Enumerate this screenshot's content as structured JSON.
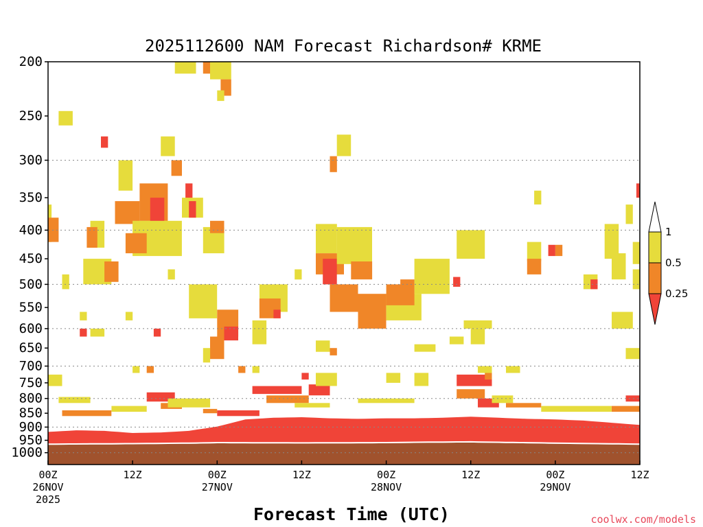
{
  "chart_data": {
    "type": "heatmap",
    "title": "2025112600 NAM Forecast Richardson# KRME",
    "xlabel": "Forecast Time (UTC)",
    "ylabel": "",
    "y_axis": "pressure (hPa), log-scale, inverted",
    "ylim": [
      1050,
      200
    ],
    "yticks": [
      200,
      250,
      300,
      350,
      400,
      450,
      500,
      550,
      600,
      650,
      700,
      750,
      800,
      850,
      900,
      950,
      1000
    ],
    "xlim_hours": [
      0,
      84
    ],
    "xticks": [
      {
        "hour": 0,
        "lines": [
          "00Z",
          "26NOV",
          "2025"
        ]
      },
      {
        "hour": 12,
        "lines": [
          "12Z"
        ]
      },
      {
        "hour": 24,
        "lines": [
          "00Z",
          "27NOV"
        ]
      },
      {
        "hour": 36,
        "lines": [
          "12Z"
        ]
      },
      {
        "hour": 48,
        "lines": [
          "00Z",
          "28NOV"
        ]
      },
      {
        "hour": 60,
        "lines": [
          "12Z"
        ]
      },
      {
        "hour": 72,
        "lines": [
          "00Z",
          "29NOV"
        ]
      },
      {
        "hour": 84,
        "lines": [
          "12Z"
        ]
      }
    ],
    "grid": "dotted horizontal at 300, 400, 500, 600, 700, 800, 900, 1000",
    "legend": {
      "placement": "right",
      "labels": [
        "1",
        "0.5",
        "0.25"
      ],
      "bins": [
        {
          "range": "< 0.25",
          "color": "#f04438"
        },
        {
          "range": "0.25 - 0.5",
          "color": "#f08628"
        },
        {
          "range": "0.5 - 1",
          "color": "#e6dc3c"
        },
        {
          "range": "> 1",
          "color": "#ffffff"
        }
      ]
    },
    "colors": {
      "low": "#f04438",
      "mid": "#f08628",
      "high": "#e6dc3c",
      "ground": "#a0522d"
    },
    "ground": [
      [
        0,
        968
      ],
      [
        12,
        966
      ],
      [
        20,
        964
      ],
      [
        24,
        962
      ],
      [
        36,
        963
      ],
      [
        48,
        962
      ],
      [
        54,
        960
      ],
      [
        60,
        959
      ],
      [
        72,
        964
      ],
      [
        84,
        968
      ]
    ],
    "lower_layer_top": [
      [
        0,
        918
      ],
      [
        4,
        912
      ],
      [
        8,
        914
      ],
      [
        12,
        922
      ],
      [
        16,
        920
      ],
      [
        20,
        914
      ],
      [
        24,
        898
      ],
      [
        28,
        872
      ],
      [
        32,
        866
      ],
      [
        36,
        864
      ],
      [
        40,
        868
      ],
      [
        44,
        870
      ],
      [
        48,
        868
      ],
      [
        52,
        868
      ],
      [
        56,
        866
      ],
      [
        60,
        862
      ],
      [
        64,
        866
      ],
      [
        68,
        870
      ],
      [
        72,
        872
      ],
      [
        76,
        876
      ],
      [
        80,
        884
      ],
      [
        84,
        892
      ]
    ],
    "regions": [
      {
        "c": "high",
        "h": [
          0,
          2
        ],
        "p": [
          725,
          760
        ]
      },
      {
        "c": "high",
        "h": [
          1.5,
          6
        ],
        "p": [
          795,
          815
        ]
      },
      {
        "c": "mid",
        "h": [
          2,
          9
        ],
        "p": [
          840,
          860
        ]
      },
      {
        "c": "high",
        "h": [
          9,
          14
        ],
        "p": [
          825,
          845
        ]
      },
      {
        "c": "low",
        "h": [
          14,
          18
        ],
        "p": [
          780,
          810
        ]
      },
      {
        "c": "mid",
        "h": [
          16,
          19
        ],
        "p": [
          815,
          835
        ]
      },
      {
        "c": "high",
        "h": [
          17,
          23
        ],
        "p": [
          800,
          830
        ]
      },
      {
        "c": "mid",
        "h": [
          22,
          24
        ],
        "p": [
          835,
          850
        ]
      },
      {
        "c": "low",
        "h": [
          24,
          30
        ],
        "p": [
          840,
          860
        ]
      },
      {
        "c": "low",
        "h": [
          29,
          36
        ],
        "p": [
          760,
          785
        ]
      },
      {
        "c": "mid",
        "h": [
          31,
          37
        ],
        "p": [
          790,
          815
        ]
      },
      {
        "c": "high",
        "h": [
          35,
          40
        ],
        "p": [
          815,
          830
        ]
      },
      {
        "c": "low",
        "h": [
          37,
          40
        ],
        "p": [
          755,
          790
        ]
      },
      {
        "c": "high",
        "h": [
          44,
          52
        ],
        "p": [
          800,
          815
        ]
      },
      {
        "c": "low",
        "h": [
          58,
          63
        ],
        "p": [
          725,
          760
        ]
      },
      {
        "c": "mid",
        "h": [
          58,
          62
        ],
        "p": [
          770,
          800
        ]
      },
      {
        "c": "low",
        "h": [
          61,
          64
        ],
        "p": [
          800,
          830
        ]
      },
      {
        "c": "high",
        "h": [
          63,
          66
        ],
        "p": [
          790,
          815
        ]
      },
      {
        "c": "mid",
        "h": [
          65,
          70
        ],
        "p": [
          815,
          830
        ]
      },
      {
        "c": "high",
        "h": [
          70,
          80
        ],
        "p": [
          825,
          845
        ]
      },
      {
        "c": "mid",
        "h": [
          80,
          84
        ],
        "p": [
          825,
          845
        ]
      },
      {
        "c": "low",
        "h": [
          82,
          84
        ],
        "p": [
          790,
          810
        ]
      },
      {
        "c": "high",
        "h": [
          18,
          21
        ],
        "p": [
          200,
          210
        ]
      },
      {
        "c": "mid",
        "h": [
          22,
          23
        ],
        "p": [
          200,
          210
        ]
      },
      {
        "c": "high",
        "h": [
          23,
          26
        ],
        "p": [
          200,
          215
        ]
      },
      {
        "c": "mid",
        "h": [
          24.5,
          26
        ],
        "p": [
          215,
          230
        ]
      },
      {
        "c": "high",
        "h": [
          24,
          25
        ],
        "p": [
          225,
          235
        ]
      },
      {
        "c": "high",
        "h": [
          1.5,
          3.5
        ],
        "p": [
          245,
          260
        ]
      },
      {
        "c": "low",
        "h": [
          7.5,
          8.5
        ],
        "p": [
          272,
          285
        ]
      },
      {
        "c": "high",
        "h": [
          16,
          18
        ],
        "p": [
          272,
          295
        ]
      },
      {
        "c": "mid",
        "h": [
          17.5,
          19
        ],
        "p": [
          300,
          320
        ]
      },
      {
        "c": "high",
        "h": [
          10,
          12
        ],
        "p": [
          300,
          340
        ]
      },
      {
        "c": "mid",
        "h": [
          13,
          17
        ],
        "p": [
          330,
          385
        ]
      },
      {
        "c": "low",
        "h": [
          14.5,
          16.5
        ],
        "p": [
          350,
          390
        ]
      },
      {
        "c": "mid",
        "h": [
          9.5,
          13
        ],
        "p": [
          355,
          390
        ]
      },
      {
        "c": "high",
        "h": [
          12,
          19
        ],
        "p": [
          385,
          445
        ]
      },
      {
        "c": "mid",
        "h": [
          11,
          14
        ],
        "p": [
          405,
          440
        ]
      },
      {
        "c": "high",
        "h": [
          6,
          8
        ],
        "p": [
          385,
          430
        ]
      },
      {
        "c": "mid",
        "h": [
          5.5,
          7
        ],
        "p": [
          395,
          430
        ]
      },
      {
        "c": "high",
        "h": [
          5,
          9
        ],
        "p": [
          450,
          500
        ]
      },
      {
        "c": "mid",
        "h": [
          8,
          10
        ],
        "p": [
          455,
          495
        ]
      },
      {
        "c": "low",
        "h": [
          19.5,
          20.5
        ],
        "p": [
          330,
          360
        ]
      },
      {
        "c": "high",
        "h": [
          19,
          22
        ],
        "p": [
          350,
          380
        ]
      },
      {
        "c": "low",
        "h": [
          20,
          21
        ],
        "p": [
          355,
          380
        ]
      },
      {
        "c": "high",
        "h": [
          22,
          25
        ],
        "p": [
          395,
          440
        ]
      },
      {
        "c": "mid",
        "h": [
          23,
          25
        ],
        "p": [
          385,
          405
        ]
      },
      {
        "c": "high",
        "h": [
          20,
          24
        ],
        "p": [
          500,
          575
        ]
      },
      {
        "c": "mid",
        "h": [
          24,
          27
        ],
        "p": [
          555,
          620
        ]
      },
      {
        "c": "low",
        "h": [
          25,
          27
        ],
        "p": [
          595,
          630
        ]
      },
      {
        "c": "mid",
        "h": [
          23,
          25
        ],
        "p": [
          620,
          680
        ]
      },
      {
        "c": "high",
        "h": [
          22,
          23
        ],
        "p": [
          650,
          690
        ]
      },
      {
        "c": "high",
        "h": [
          30,
          34
        ],
        "p": [
          500,
          560
        ]
      },
      {
        "c": "mid",
        "h": [
          30,
          33
        ],
        "p": [
          530,
          575
        ]
      },
      {
        "c": "low",
        "h": [
          32,
          33
        ],
        "p": [
          555,
          575
        ]
      },
      {
        "c": "high",
        "h": [
          29,
          31
        ],
        "p": [
          580,
          640
        ]
      },
      {
        "c": "high",
        "h": [
          38,
          41
        ],
        "p": [
          390,
          440
        ]
      },
      {
        "c": "mid",
        "h": [
          38,
          42
        ],
        "p": [
          440,
          480
        ]
      },
      {
        "c": "low",
        "h": [
          39,
          41
        ],
        "p": [
          450,
          500
        ]
      },
      {
        "c": "mid",
        "h": [
          40,
          44
        ],
        "p": [
          500,
          560
        ]
      },
      {
        "c": "high",
        "h": [
          41,
          46
        ],
        "p": [
          395,
          460
        ]
      },
      {
        "c": "mid",
        "h": [
          43,
          46
        ],
        "p": [
          455,
          490
        ]
      },
      {
        "c": "mid",
        "h": [
          44,
          48
        ],
        "p": [
          520,
          600
        ]
      },
      {
        "c": "high",
        "h": [
          48,
          53
        ],
        "p": [
          520,
          580
        ]
      },
      {
        "c": "mid",
        "h": [
          48,
          52
        ],
        "p": [
          500,
          545
        ]
      },
      {
        "c": "high",
        "h": [
          52,
          57
        ],
        "p": [
          450,
          520
        ]
      },
      {
        "c": "mid",
        "h": [
          50,
          52
        ],
        "p": [
          490,
          520
        ]
      },
      {
        "c": "high",
        "h": [
          58,
          62
        ],
        "p": [
          400,
          450
        ]
      },
      {
        "c": "high",
        "h": [
          41,
          43
        ],
        "p": [
          270,
          295
        ]
      },
      {
        "c": "mid",
        "h": [
          40,
          41
        ],
        "p": [
          295,
          315
        ]
      },
      {
        "c": "high",
        "h": [
          60,
          62
        ],
        "p": [
          600,
          640
        ]
      },
      {
        "c": "low",
        "h": [
          57.5,
          58.5
        ],
        "p": [
          485,
          505
        ]
      },
      {
        "c": "high",
        "h": [
          61,
          63
        ],
        "p": [
          580,
          600
        ]
      },
      {
        "c": "high",
        "h": [
          38,
          40
        ],
        "p": [
          630,
          660
        ]
      },
      {
        "c": "mid",
        "h": [
          40,
          41
        ],
        "p": [
          650,
          670
        ]
      },
      {
        "c": "high",
        "h": [
          68,
          70
        ],
        "p": [
          420,
          455
        ]
      },
      {
        "c": "mid",
        "h": [
          68,
          70
        ],
        "p": [
          450,
          480
        ]
      },
      {
        "c": "high",
        "h": [
          69,
          70
        ],
        "p": [
          340,
          360
        ]
      },
      {
        "c": "low",
        "h": [
          71,
          72
        ],
        "p": [
          425,
          445
        ]
      },
      {
        "c": "mid",
        "h": [
          72,
          73
        ],
        "p": [
          425,
          445
        ]
      },
      {
        "c": "high",
        "h": [
          76,
          78
        ],
        "p": [
          480,
          510
        ]
      },
      {
        "c": "low",
        "h": [
          77,
          78
        ],
        "p": [
          490,
          510
        ]
      },
      {
        "c": "high",
        "h": [
          79,
          81
        ],
        "p": [
          390,
          450
        ]
      },
      {
        "c": "high",
        "h": [
          80,
          82
        ],
        "p": [
          440,
          490
        ]
      },
      {
        "c": "high",
        "h": [
          82,
          83
        ],
        "p": [
          360,
          390
        ]
      },
      {
        "c": "high",
        "h": [
          80,
          83
        ],
        "p": [
          560,
          600
        ]
      },
      {
        "c": "high",
        "h": [
          83,
          84
        ],
        "p": [
          420,
          460
        ]
      },
      {
        "c": "high",
        "h": [
          83,
          84
        ],
        "p": [
          470,
          510
        ]
      },
      {
        "c": "low",
        "h": [
          83.5,
          84
        ],
        "p": [
          330,
          350
        ]
      },
      {
        "c": "high",
        "h": [
          82,
          84
        ],
        "p": [
          650,
          680
        ]
      },
      {
        "c": "high",
        "h": [
          0,
          0.5
        ],
        "p": [
          360,
          420
        ]
      },
      {
        "c": "mid",
        "h": [
          0,
          1.5
        ],
        "p": [
          380,
          420
        ]
      },
      {
        "c": "high",
        "h": [
          2,
          3
        ],
        "p": [
          480,
          510
        ]
      },
      {
        "c": "low",
        "h": [
          4.5,
          5.5
        ],
        "p": [
          600,
          620
        ]
      },
      {
        "c": "high",
        "h": [
          6,
          8
        ],
        "p": [
          600,
          620
        ]
      },
      {
        "c": "high",
        "h": [
          4.5,
          5.5
        ],
        "p": [
          560,
          580
        ]
      },
      {
        "c": "high",
        "h": [
          11,
          12
        ],
        "p": [
          560,
          580
        ]
      },
      {
        "c": "low",
        "h": [
          15,
          16
        ],
        "p": [
          600,
          620
        ]
      },
      {
        "c": "high",
        "h": [
          17,
          18
        ],
        "p": [
          470,
          490
        ]
      },
      {
        "c": "high",
        "h": [
          35,
          36
        ],
        "p": [
          470,
          490
        ]
      },
      {
        "c": "mid",
        "h": [
          27,
          28
        ],
        "p": [
          700,
          720
        ]
      },
      {
        "c": "high",
        "h": [
          29,
          30
        ],
        "p": [
          700,
          720
        ]
      },
      {
        "c": "mid",
        "h": [
          14,
          15
        ],
        "p": [
          700,
          720
        ]
      },
      {
        "c": "high",
        "h": [
          12,
          13
        ],
        "p": [
          700,
          720
        ]
      },
      {
        "c": "low",
        "h": [
          36,
          37
        ],
        "p": [
          720,
          740
        ]
      },
      {
        "c": "high",
        "h": [
          38,
          41
        ],
        "p": [
          720,
          760
        ]
      },
      {
        "c": "high",
        "h": [
          48,
          50
        ],
        "p": [
          720,
          750
        ]
      },
      {
        "c": "high",
        "h": [
          52,
          54
        ],
        "p": [
          720,
          760
        ]
      },
      {
        "c": "mid",
        "h": [
          62,
          63
        ],
        "p": [
          720,
          740
        ]
      },
      {
        "c": "high",
        "h": [
          65,
          67
        ],
        "p": [
          700,
          720
        ]
      },
      {
        "c": "high",
        "h": [
          52,
          55
        ],
        "p": [
          640,
          660
        ]
      },
      {
        "c": "high",
        "h": [
          57,
          59
        ],
        "p": [
          620,
          640
        ]
      },
      {
        "c": "high",
        "h": [
          59,
          61
        ],
        "p": [
          580,
          600
        ]
      },
      {
        "c": "high",
        "h": [
          61,
          63
        ],
        "p": [
          700,
          720
        ]
      }
    ]
  },
  "credit": "coolwx.com/models"
}
